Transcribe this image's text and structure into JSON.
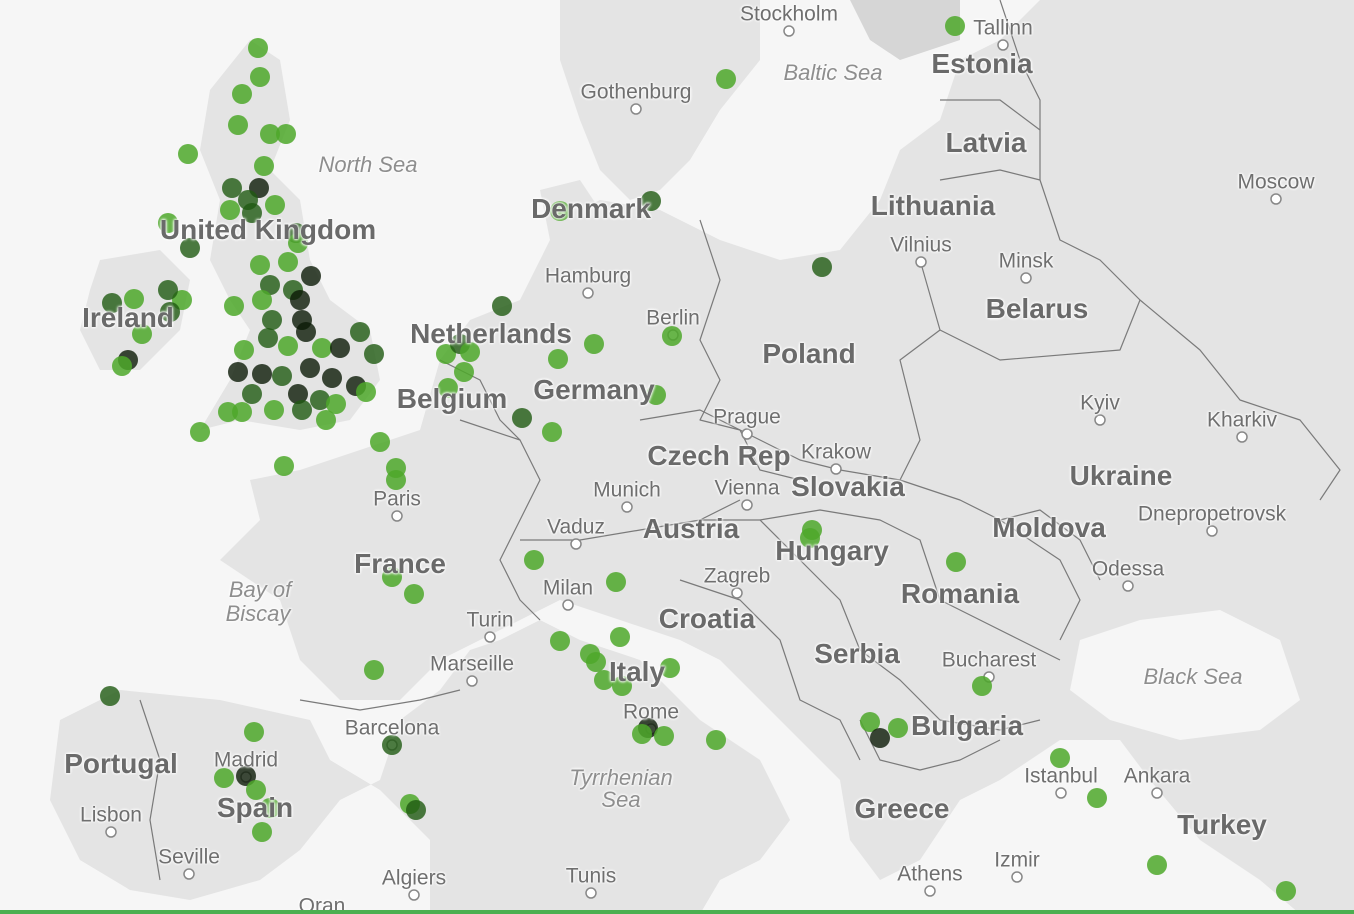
{
  "colors": {
    "background": "#f2f2f2",
    "land": "#e4e4e4",
    "land_dark": "#d6d6d6",
    "water": "#f6f6f6",
    "border": "#7a7a7a",
    "dot_light": "#4ea82a",
    "dot_dark": "#1f5a12",
    "dot_black": "#0b1a06",
    "bottom_bar": "#4caf50"
  },
  "countries": [
    {
      "text": "Estonia"
    },
    {
      "text": "Latvia"
    },
    {
      "text": "Lithuania"
    },
    {
      "text": "Belarus"
    },
    {
      "text": "Poland"
    },
    {
      "text": "Ukraine"
    },
    {
      "text": "Germany"
    },
    {
      "text": "Netherlands"
    },
    {
      "text": "Belgium"
    },
    {
      "text": "France"
    },
    {
      "text": "United Kingdom"
    },
    {
      "text": "Ireland"
    },
    {
      "text": "Portugal"
    },
    {
      "text": "Spain"
    },
    {
      "text": "Italy"
    },
    {
      "text": "Austria"
    },
    {
      "text": "Hungary"
    },
    {
      "text": "Romania"
    },
    {
      "text": "Slovakia"
    },
    {
      "text": "Czech Rep"
    },
    {
      "text": "Croatia"
    },
    {
      "text": "Serbia"
    },
    {
      "text": "Bulgaria"
    },
    {
      "text": "Greece"
    },
    {
      "text": "Turkey"
    },
    {
      "text": "Moldova"
    },
    {
      "text": "Denmark"
    }
  ],
  "cities": [
    {
      "text": "Stockholm"
    },
    {
      "text": "Tallinn"
    },
    {
      "text": "Gothenburg"
    },
    {
      "text": "Moscow"
    },
    {
      "text": "Vilnius"
    },
    {
      "text": "Minsk"
    },
    {
      "text": "Hamburg"
    },
    {
      "text": "Berlin"
    },
    {
      "text": "Prague"
    },
    {
      "text": "Krakow"
    },
    {
      "text": "Kyiv"
    },
    {
      "text": "Kharkiv"
    },
    {
      "text": "Dnepropetrovsk"
    },
    {
      "text": "Odessa"
    },
    {
      "text": "Munich"
    },
    {
      "text": "Vienna"
    },
    {
      "text": "Vaduz"
    },
    {
      "text": "Paris"
    },
    {
      "text": "Milan"
    },
    {
      "text": "Zagreb"
    },
    {
      "text": "Turin"
    },
    {
      "text": "Marseille"
    },
    {
      "text": "Bucharest"
    },
    {
      "text": "Rome"
    },
    {
      "text": "Barcelona"
    },
    {
      "text": "Madrid"
    },
    {
      "text": "Lisbon"
    },
    {
      "text": "Seville"
    },
    {
      "text": "Istanbul"
    },
    {
      "text": "Ankara"
    },
    {
      "text": "Izmir"
    },
    {
      "text": "Athens"
    },
    {
      "text": "Algiers"
    },
    {
      "text": "Tunis"
    },
    {
      "text": "Oran"
    }
  ],
  "water_bodies": [
    {
      "text": "North Sea"
    },
    {
      "text": "Baltic Sea"
    },
    {
      "text": "Bay of"
    },
    {
      "text": "Biscay"
    },
    {
      "text": "Black Sea"
    },
    {
      "text": "Tyrrhenian"
    },
    {
      "text": "Sea"
    }
  ]
}
